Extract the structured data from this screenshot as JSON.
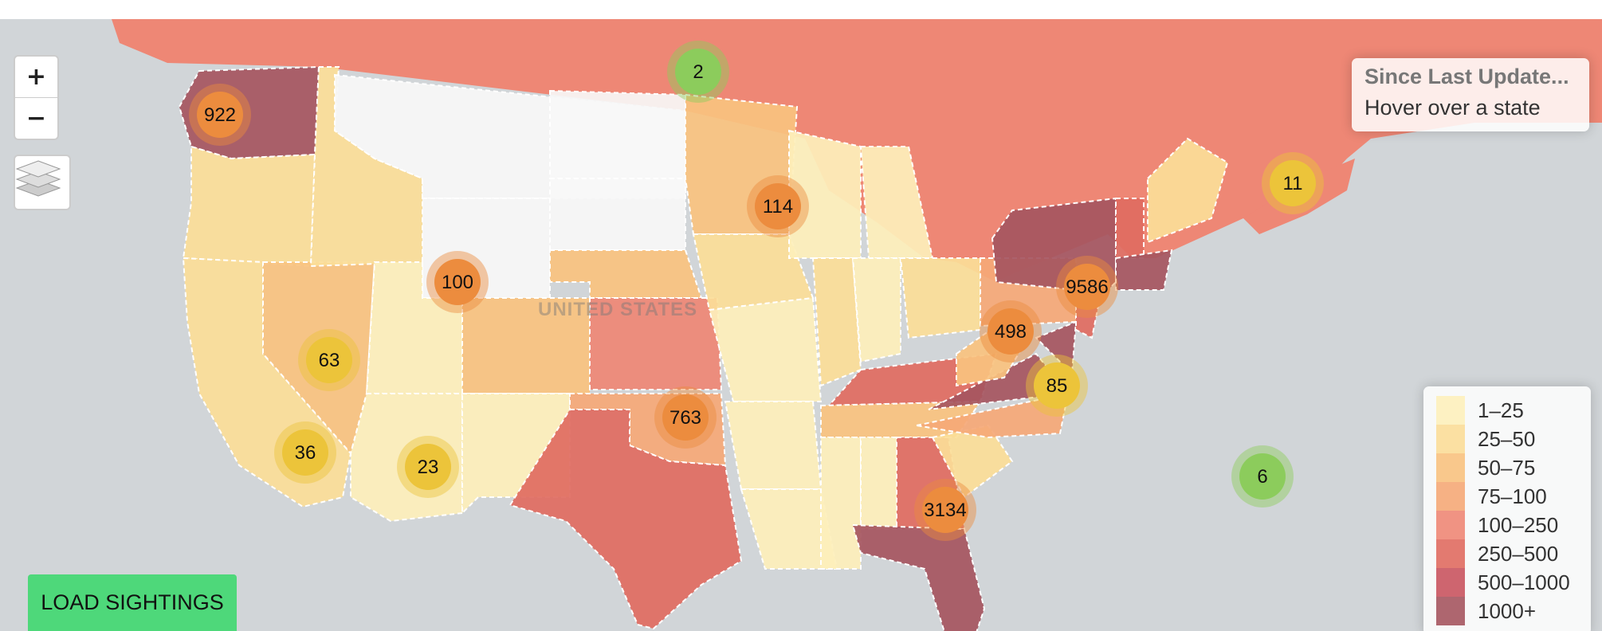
{
  "map": {
    "country_label": "UNITED STATES",
    "colors": {
      "ocean": "#d1d5d8",
      "canada": "#ee8775",
      "none": "#f7f7f7",
      "b1": "#fdefbb",
      "b2": "#fbdd98",
      "b3": "#f8c27f",
      "b4": "#f5a877",
      "b5": "#ee8775",
      "b6": "#e06b61",
      "b7": "#c9545f",
      "b8": "#a5555f"
    }
  },
  "controls": {
    "zoom_in": "+",
    "zoom_out": "−",
    "layers_icon": "layers-icon"
  },
  "info": {
    "title": "Since Last Update...",
    "subtitle": "Hover over a state"
  },
  "legend": [
    {
      "label": "1–25",
      "color": "#fdefbb"
    },
    {
      "label": "25–50",
      "color": "#fbdd98"
    },
    {
      "label": "50–75",
      "color": "#f8c27f"
    },
    {
      "label": "75–100",
      "color": "#f5a877"
    },
    {
      "label": "100–250",
      "color": "#ee8775"
    },
    {
      "label": "250–500",
      "color": "#e06b61"
    },
    {
      "label": "500–1000",
      "color": "#c9545f"
    },
    {
      "label": "1000+",
      "color": "#a5555f"
    }
  ],
  "clusters": [
    {
      "name": "washington",
      "count": "922",
      "tier": "orange"
    },
    {
      "name": "north-dakota",
      "count": "2",
      "tier": "green"
    },
    {
      "name": "wisconsin",
      "count": "114",
      "tier": "orange"
    },
    {
      "name": "nova-scotia",
      "count": "11",
      "tier": "yellow"
    },
    {
      "name": "colorado",
      "count": "100",
      "tier": "orange"
    },
    {
      "name": "new-jersey",
      "count": "9586",
      "tier": "orange"
    },
    {
      "name": "virginia",
      "count": "498",
      "tier": "orange"
    },
    {
      "name": "nevada",
      "count": "63",
      "tier": "yellow"
    },
    {
      "name": "north-carolina",
      "count": "85",
      "tier": "yellow"
    },
    {
      "name": "oklahoma",
      "count": "763",
      "tier": "orange"
    },
    {
      "name": "southern-california",
      "count": "36",
      "tier": "yellow"
    },
    {
      "name": "arizona",
      "count": "23",
      "tier": "yellow"
    },
    {
      "name": "atlantic",
      "count": "6",
      "tier": "green"
    },
    {
      "name": "florida",
      "count": "3134",
      "tier": "orange"
    }
  ],
  "cluster_colors": {
    "green": {
      "inner": "#8ccc5c",
      "outer": "rgba(140,204,92,0.45)"
    },
    "yellow": {
      "inner": "#ecc43a",
      "outer": "rgba(236,196,58,0.45)"
    },
    "orange": {
      "inner": "#ec8c3e",
      "outer": "rgba(236,140,62,0.45)"
    }
  },
  "button": {
    "label": "LOAD SIGHTINGS"
  }
}
